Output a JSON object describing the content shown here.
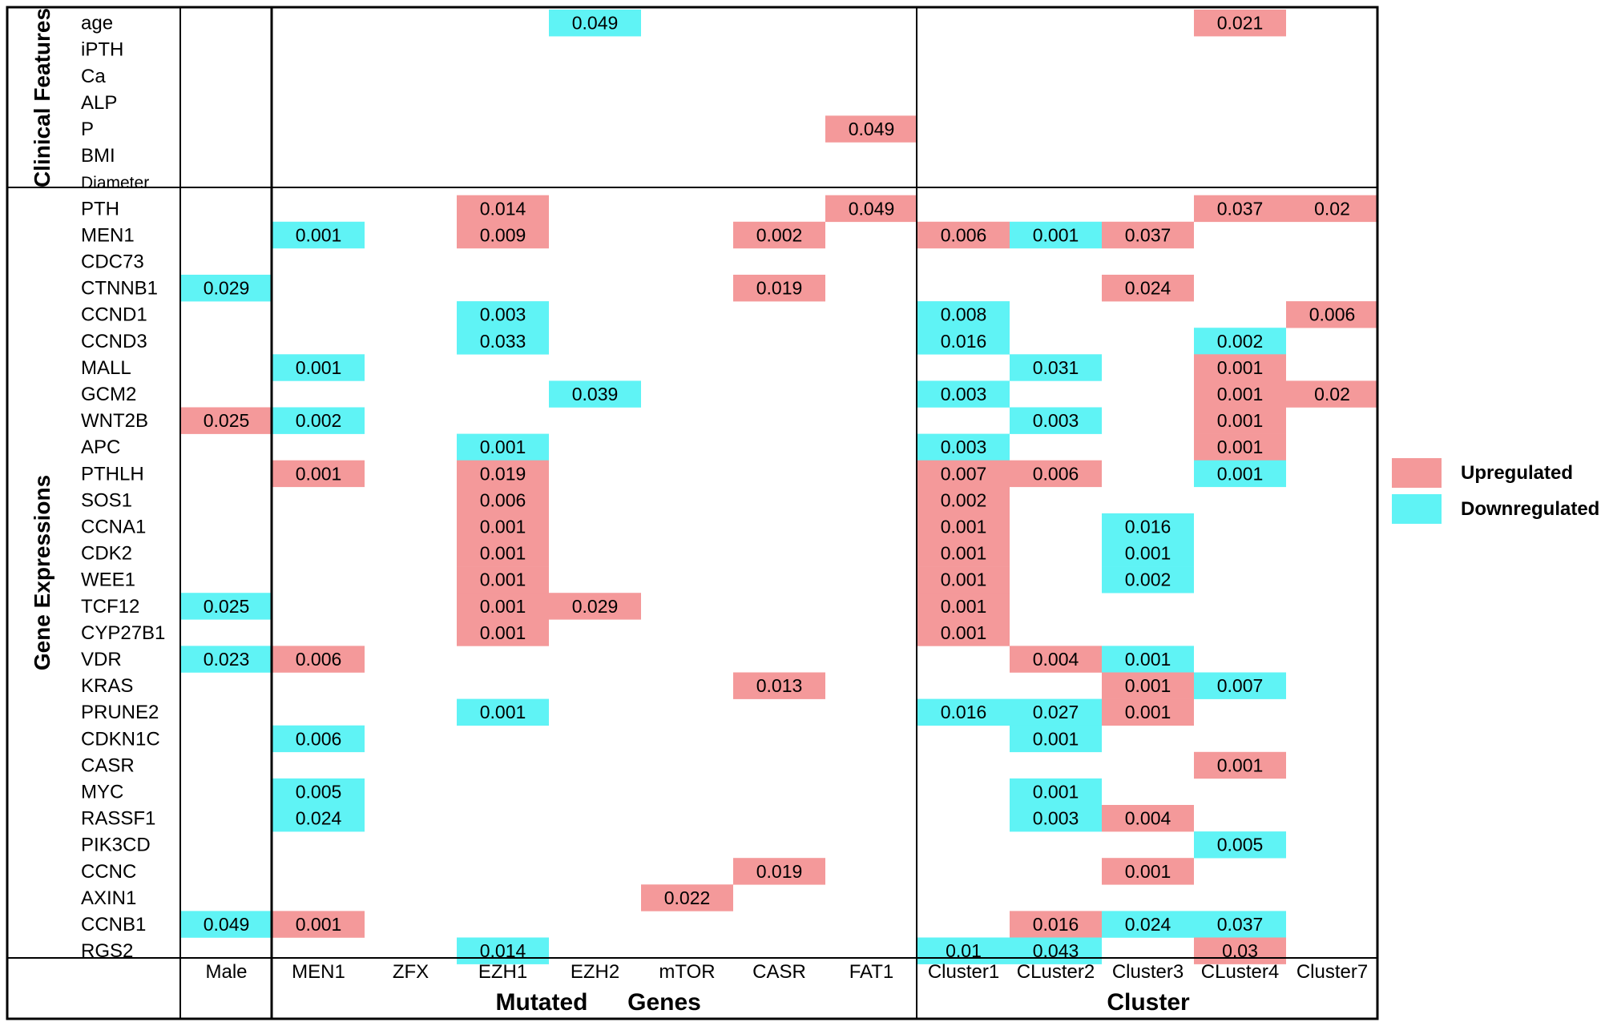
{
  "chart_data": {
    "type": "heatmap",
    "group_labels": {
      "row_groups": [
        "Clinical Features",
        "Gene Expressions"
      ],
      "column_groups": [
        "Mutated",
        "Genes",
        "Cluster"
      ]
    },
    "row_group_assignment": {
      "Clinical Features": [
        "age",
        "iPTH",
        "Ca",
        "ALP",
        "P",
        "BMI",
        "Diameter"
      ],
      "Gene Expressions": [
        "PTH",
        "MEN1",
        "CDC73",
        "CTNNB1",
        "CCND1",
        "CCND3",
        "MALL",
        "GCM2",
        "WNT2B",
        "APC",
        "PTHLH",
        "SOS1",
        "CCNA1",
        "CDK2",
        "WEE1",
        "TCF12",
        "CYP27B1",
        "VDR",
        "KRAS",
        "PRUNE2",
        "CDKN1C",
        "CASR",
        "MYC",
        "RASSF1",
        "PIK3CD",
        "CCNC",
        "AXIN1",
        "CCNB1",
        "RGS2"
      ]
    },
    "column_group_assignment": {
      "sex": [
        "Male"
      ],
      "Mutated Genes": [
        "MEN1",
        "ZFX",
        "EZH1",
        "EZH2",
        "mTOR",
        "CASR",
        "FAT1"
      ],
      "Cluster": [
        "Cluster1",
        "CLuster2",
        "Cluster3",
        "CLuster4",
        "Cluster7"
      ]
    },
    "rows": [
      "age",
      "iPTH",
      "Ca",
      "ALP",
      "P",
      "BMI",
      "Diameter",
      "PTH",
      "MEN1",
      "CDC73",
      "CTNNB1",
      "CCND1",
      "CCND3",
      "MALL",
      "GCM2",
      "WNT2B",
      "APC",
      "PTHLH",
      "SOS1",
      "CCNA1",
      "CDK2",
      "WEE1",
      "TCF12",
      "CYP27B1",
      "VDR",
      "KRAS",
      "PRUNE2",
      "CDKN1C",
      "CASR",
      "MYC",
      "RASSF1",
      "PIK3CD",
      "CCNC",
      "AXIN1",
      "CCNB1",
      "RGS2"
    ],
    "columns": [
      "Male",
      "MEN1",
      "ZFX",
      "EZH1",
      "EZH2",
      "mTOR",
      "CASR",
      "FAT1",
      "Cluster1",
      "CLuster2",
      "Cluster3",
      "CLuster4",
      "Cluster7"
    ],
    "legend": [
      {
        "key": "up",
        "label": "Upregulated",
        "color": "#f4999a"
      },
      {
        "key": "down",
        "label": "Downregulated",
        "color": "#5ff3f5"
      }
    ],
    "cells": [
      {
        "row": "age",
        "col": "EZH2",
        "value": "0.049",
        "dir": "down"
      },
      {
        "row": "age",
        "col": "CLuster4",
        "value": "0.021",
        "dir": "up"
      },
      {
        "row": "P",
        "col": "FAT1",
        "value": "0.049",
        "dir": "up"
      },
      {
        "row": "PTH",
        "col": "EZH1",
        "value": "0.014",
        "dir": "up"
      },
      {
        "row": "PTH",
        "col": "FAT1",
        "value": "0.049",
        "dir": "up"
      },
      {
        "row": "PTH",
        "col": "CLuster4",
        "value": "0.037",
        "dir": "up"
      },
      {
        "row": "PTH",
        "col": "Cluster7",
        "value": "0.02",
        "dir": "up"
      },
      {
        "row": "MEN1",
        "col": "MEN1",
        "value": "0.001",
        "dir": "down"
      },
      {
        "row": "MEN1",
        "col": "EZH1",
        "value": "0.009",
        "dir": "up"
      },
      {
        "row": "MEN1",
        "col": "CASR",
        "value": "0.002",
        "dir": "up"
      },
      {
        "row": "MEN1",
        "col": "Cluster1",
        "value": "0.006",
        "dir": "up"
      },
      {
        "row": "MEN1",
        "col": "CLuster2",
        "value": "0.001",
        "dir": "down"
      },
      {
        "row": "MEN1",
        "col": "Cluster3",
        "value": "0.037",
        "dir": "up"
      },
      {
        "row": "CTNNB1",
        "col": "Male",
        "value": "0.029",
        "dir": "down"
      },
      {
        "row": "CTNNB1",
        "col": "CASR",
        "value": "0.019",
        "dir": "up"
      },
      {
        "row": "CTNNB1",
        "col": "Cluster3",
        "value": "0.024",
        "dir": "up"
      },
      {
        "row": "CCND1",
        "col": "EZH1",
        "value": "0.003",
        "dir": "down"
      },
      {
        "row": "CCND1",
        "col": "Cluster1",
        "value": "0.008",
        "dir": "down"
      },
      {
        "row": "CCND1",
        "col": "Cluster7",
        "value": "0.006",
        "dir": "up"
      },
      {
        "row": "CCND3",
        "col": "EZH1",
        "value": "0.033",
        "dir": "down"
      },
      {
        "row": "CCND3",
        "col": "Cluster1",
        "value": "0.016",
        "dir": "down"
      },
      {
        "row": "CCND3",
        "col": "CLuster4",
        "value": "0.002",
        "dir": "down"
      },
      {
        "row": "MALL",
        "col": "MEN1",
        "value": "0.001",
        "dir": "down"
      },
      {
        "row": "MALL",
        "col": "CLuster2",
        "value": "0.031",
        "dir": "down"
      },
      {
        "row": "MALL",
        "col": "CLuster4",
        "value": "0.001",
        "dir": "up"
      },
      {
        "row": "GCM2",
        "col": "EZH2",
        "value": "0.039",
        "dir": "down"
      },
      {
        "row": "GCM2",
        "col": "Cluster1",
        "value": "0.003",
        "dir": "down"
      },
      {
        "row": "GCM2",
        "col": "CLuster4",
        "value": "0.001",
        "dir": "up"
      },
      {
        "row": "GCM2",
        "col": "Cluster7",
        "value": "0.02",
        "dir": "up"
      },
      {
        "row": "WNT2B",
        "col": "Male",
        "value": "0.025",
        "dir": "up"
      },
      {
        "row": "WNT2B",
        "col": "MEN1",
        "value": "0.002",
        "dir": "down"
      },
      {
        "row": "WNT2B",
        "col": "CLuster2",
        "value": "0.003",
        "dir": "down"
      },
      {
        "row": "WNT2B",
        "col": "CLuster4",
        "value": "0.001",
        "dir": "up"
      },
      {
        "row": "APC",
        "col": "EZH1",
        "value": "0.001",
        "dir": "down"
      },
      {
        "row": "APC",
        "col": "Cluster1",
        "value": "0.003",
        "dir": "down"
      },
      {
        "row": "APC",
        "col": "CLuster4",
        "value": "0.001",
        "dir": "up"
      },
      {
        "row": "PTHLH",
        "col": "MEN1",
        "value": "0.001",
        "dir": "up"
      },
      {
        "row": "PTHLH",
        "col": "EZH1",
        "value": "0.019",
        "dir": "up"
      },
      {
        "row": "PTHLH",
        "col": "Cluster1",
        "value": "0.007",
        "dir": "up"
      },
      {
        "row": "PTHLH",
        "col": "CLuster2",
        "value": "0.006",
        "dir": "up"
      },
      {
        "row": "PTHLH",
        "col": "CLuster4",
        "value": "0.001",
        "dir": "down"
      },
      {
        "row": "SOS1",
        "col": "EZH1",
        "value": "0.006",
        "dir": "up"
      },
      {
        "row": "SOS1",
        "col": "Cluster1",
        "value": "0.002",
        "dir": "up"
      },
      {
        "row": "CCNA1",
        "col": "EZH1",
        "value": "0.001",
        "dir": "up"
      },
      {
        "row": "CCNA1",
        "col": "Cluster1",
        "value": "0.001",
        "dir": "up"
      },
      {
        "row": "CCNA1",
        "col": "Cluster3",
        "value": "0.016",
        "dir": "down"
      },
      {
        "row": "CDK2",
        "col": "EZH1",
        "value": "0.001",
        "dir": "up"
      },
      {
        "row": "CDK2",
        "col": "Cluster1",
        "value": "0.001",
        "dir": "up"
      },
      {
        "row": "CDK2",
        "col": "Cluster3",
        "value": "0.001",
        "dir": "down"
      },
      {
        "row": "WEE1",
        "col": "EZH1",
        "value": "0.001",
        "dir": "up"
      },
      {
        "row": "WEE1",
        "col": "Cluster1",
        "value": "0.001",
        "dir": "up"
      },
      {
        "row": "WEE1",
        "col": "Cluster3",
        "value": "0.002",
        "dir": "down"
      },
      {
        "row": "TCF12",
        "col": "Male",
        "value": "0.025",
        "dir": "down"
      },
      {
        "row": "TCF12",
        "col": "EZH1",
        "value": "0.001",
        "dir": "up"
      },
      {
        "row": "TCF12",
        "col": "EZH2",
        "value": "0.029",
        "dir": "up"
      },
      {
        "row": "TCF12",
        "col": "Cluster1",
        "value": "0.001",
        "dir": "up"
      },
      {
        "row": "CYP27B1",
        "col": "EZH1",
        "value": "0.001",
        "dir": "up"
      },
      {
        "row": "CYP27B1",
        "col": "Cluster1",
        "value": "0.001",
        "dir": "up"
      },
      {
        "row": "VDR",
        "col": "Male",
        "value": "0.023",
        "dir": "down"
      },
      {
        "row": "VDR",
        "col": "MEN1",
        "value": "0.006",
        "dir": "up"
      },
      {
        "row": "VDR",
        "col": "CLuster2",
        "value": "0.004",
        "dir": "up"
      },
      {
        "row": "VDR",
        "col": "Cluster3",
        "value": "0.001",
        "dir": "down"
      },
      {
        "row": "KRAS",
        "col": "CASR",
        "value": "0.013",
        "dir": "up"
      },
      {
        "row": "KRAS",
        "col": "Cluster3",
        "value": "0.001",
        "dir": "up"
      },
      {
        "row": "KRAS",
        "col": "CLuster4",
        "value": "0.007",
        "dir": "down"
      },
      {
        "row": "PRUNE2",
        "col": "EZH1",
        "value": "0.001",
        "dir": "down"
      },
      {
        "row": "PRUNE2",
        "col": "Cluster1",
        "value": "0.016",
        "dir": "down"
      },
      {
        "row": "PRUNE2",
        "col": "CLuster2",
        "value": "0.027",
        "dir": "down"
      },
      {
        "row": "PRUNE2",
        "col": "Cluster3",
        "value": "0.001",
        "dir": "up"
      },
      {
        "row": "CDKN1C",
        "col": "MEN1",
        "value": "0.006",
        "dir": "down"
      },
      {
        "row": "CDKN1C",
        "col": "CLuster2",
        "value": "0.001",
        "dir": "down"
      },
      {
        "row": "CASR",
        "col": "CLuster4",
        "value": "0.001",
        "dir": "up"
      },
      {
        "row": "MYC",
        "col": "MEN1",
        "value": "0.005",
        "dir": "down"
      },
      {
        "row": "MYC",
        "col": "CLuster2",
        "value": "0.001",
        "dir": "down"
      },
      {
        "row": "RASSF1",
        "col": "MEN1",
        "value": "0.024",
        "dir": "down"
      },
      {
        "row": "RASSF1",
        "col": "CLuster2",
        "value": "0.003",
        "dir": "down"
      },
      {
        "row": "RASSF1",
        "col": "Cluster3",
        "value": "0.004",
        "dir": "up"
      },
      {
        "row": "PIK3CD",
        "col": "CLuster4",
        "value": "0.005",
        "dir": "down"
      },
      {
        "row": "CCNC",
        "col": "CASR",
        "value": "0.019",
        "dir": "up"
      },
      {
        "row": "CCNC",
        "col": "Cluster3",
        "value": "0.001",
        "dir": "up"
      },
      {
        "row": "AXIN1",
        "col": "mTOR",
        "value": "0.022",
        "dir": "up"
      },
      {
        "row": "CCNB1",
        "col": "Male",
        "value": "0.049",
        "dir": "down"
      },
      {
        "row": "CCNB1",
        "col": "MEN1",
        "value": "0.001",
        "dir": "up"
      },
      {
        "row": "CCNB1",
        "col": "CLuster2",
        "value": "0.016",
        "dir": "up"
      },
      {
        "row": "CCNB1",
        "col": "Cluster3",
        "value": "0.024",
        "dir": "down"
      },
      {
        "row": "CCNB1",
        "col": "CLuster4",
        "value": "0.037",
        "dir": "down"
      },
      {
        "row": "RGS2",
        "col": "EZH1",
        "value": "0.014",
        "dir": "down"
      },
      {
        "row": "RGS2",
        "col": "Cluster1",
        "value": "0.01",
        "dir": "down"
      },
      {
        "row": "RGS2",
        "col": "CLuster2",
        "value": "0.043",
        "dir": "down"
      },
      {
        "row": "RGS2",
        "col": "CLuster4",
        "value": "0.03",
        "dir": "up"
      }
    ]
  }
}
